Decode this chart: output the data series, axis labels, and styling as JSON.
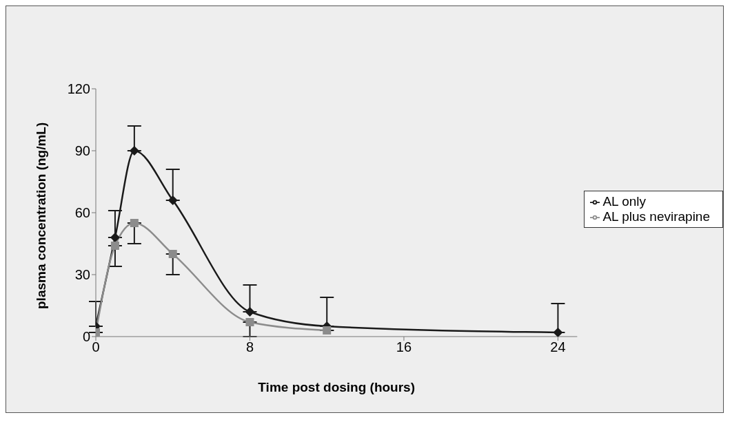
{
  "chart_data": {
    "type": "line",
    "xlabel": "Time post dosing (hours)",
    "ylabel": "plasma concentration (ng/mL)",
    "x": [
      0,
      1,
      2,
      4,
      8,
      12,
      24
    ],
    "series": [
      {
        "name": "AL only",
        "color": "#1a1a1a",
        "marker": "diamond",
        "values": [
          5,
          48,
          90,
          66,
          12,
          5,
          2
        ],
        "errors": [
          [
            5,
            17
          ],
          [
            48,
            61
          ],
          [
            90,
            102
          ],
          [
            66,
            81
          ],
          [
            12,
            25
          ],
          [
            5,
            19
          ],
          [
            2,
            16
          ]
        ]
      },
      {
        "name": "AL plus nevirapine",
        "color": "#8c8c8c",
        "marker": "square",
        "x": [
          0,
          1,
          2,
          4,
          8,
          12
        ],
        "values": [
          2,
          44,
          55,
          40,
          7,
          3
        ],
        "errors": [
          null,
          [
            34,
            44
          ],
          [
            45,
            55
          ],
          [
            30,
            40
          ],
          [
            0,
            7
          ],
          null
        ]
      }
    ],
    "xlim": [
      0,
      25
    ],
    "xticks": [
      0,
      8,
      16,
      24
    ],
    "ylim": [
      0,
      120
    ],
    "yticks": [
      0,
      30,
      60,
      90,
      120
    ],
    "grid": false,
    "legend": "right",
    "line_style": "solid"
  }
}
